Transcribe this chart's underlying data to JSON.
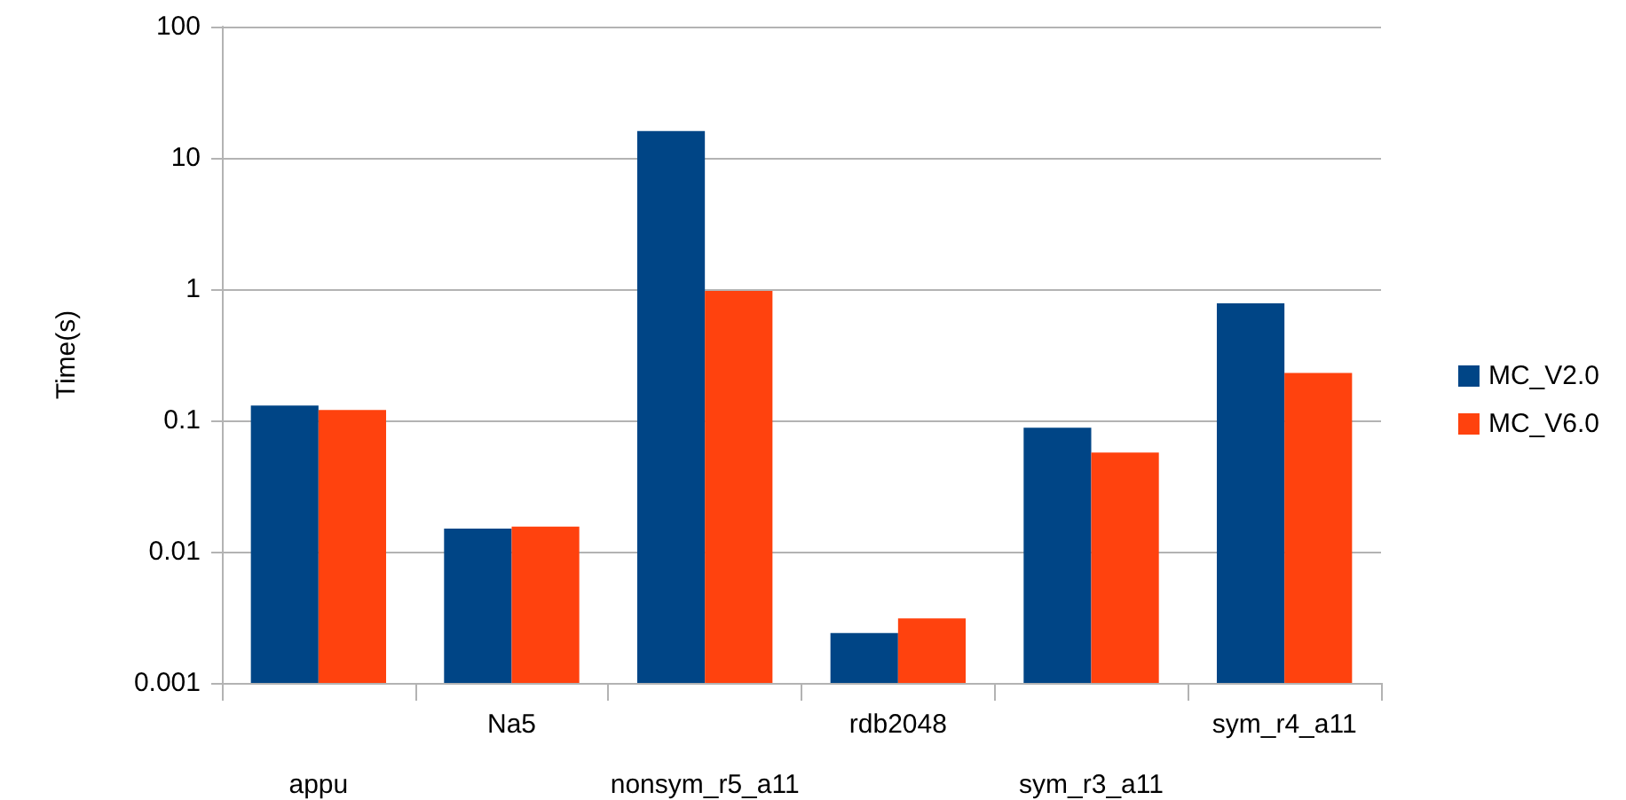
{
  "chart_data": {
    "type": "bar",
    "ylabel": "Time(s)",
    "categories": [
      "appu",
      "Na5",
      "nonsym_r5_a11",
      "rdb2048",
      "sym_r3_a11",
      "sym_r4_a11"
    ],
    "series": [
      {
        "name": "MC_V2.0",
        "color": "#004586",
        "values": [
          0.13,
          0.015,
          16,
          0.0024,
          0.088,
          0.78
        ]
      },
      {
        "name": "MC_V6.0",
        "color": "#ff420e",
        "values": [
          0.12,
          0.0155,
          0.97,
          0.0031,
          0.057,
          0.23
        ]
      }
    ],
    "log": "y",
    "ylim": [
      0.001,
      100
    ],
    "yticks": [
      0.001,
      0.01,
      0.1,
      1,
      10,
      100
    ],
    "grid": "y",
    "legend": "right"
  }
}
